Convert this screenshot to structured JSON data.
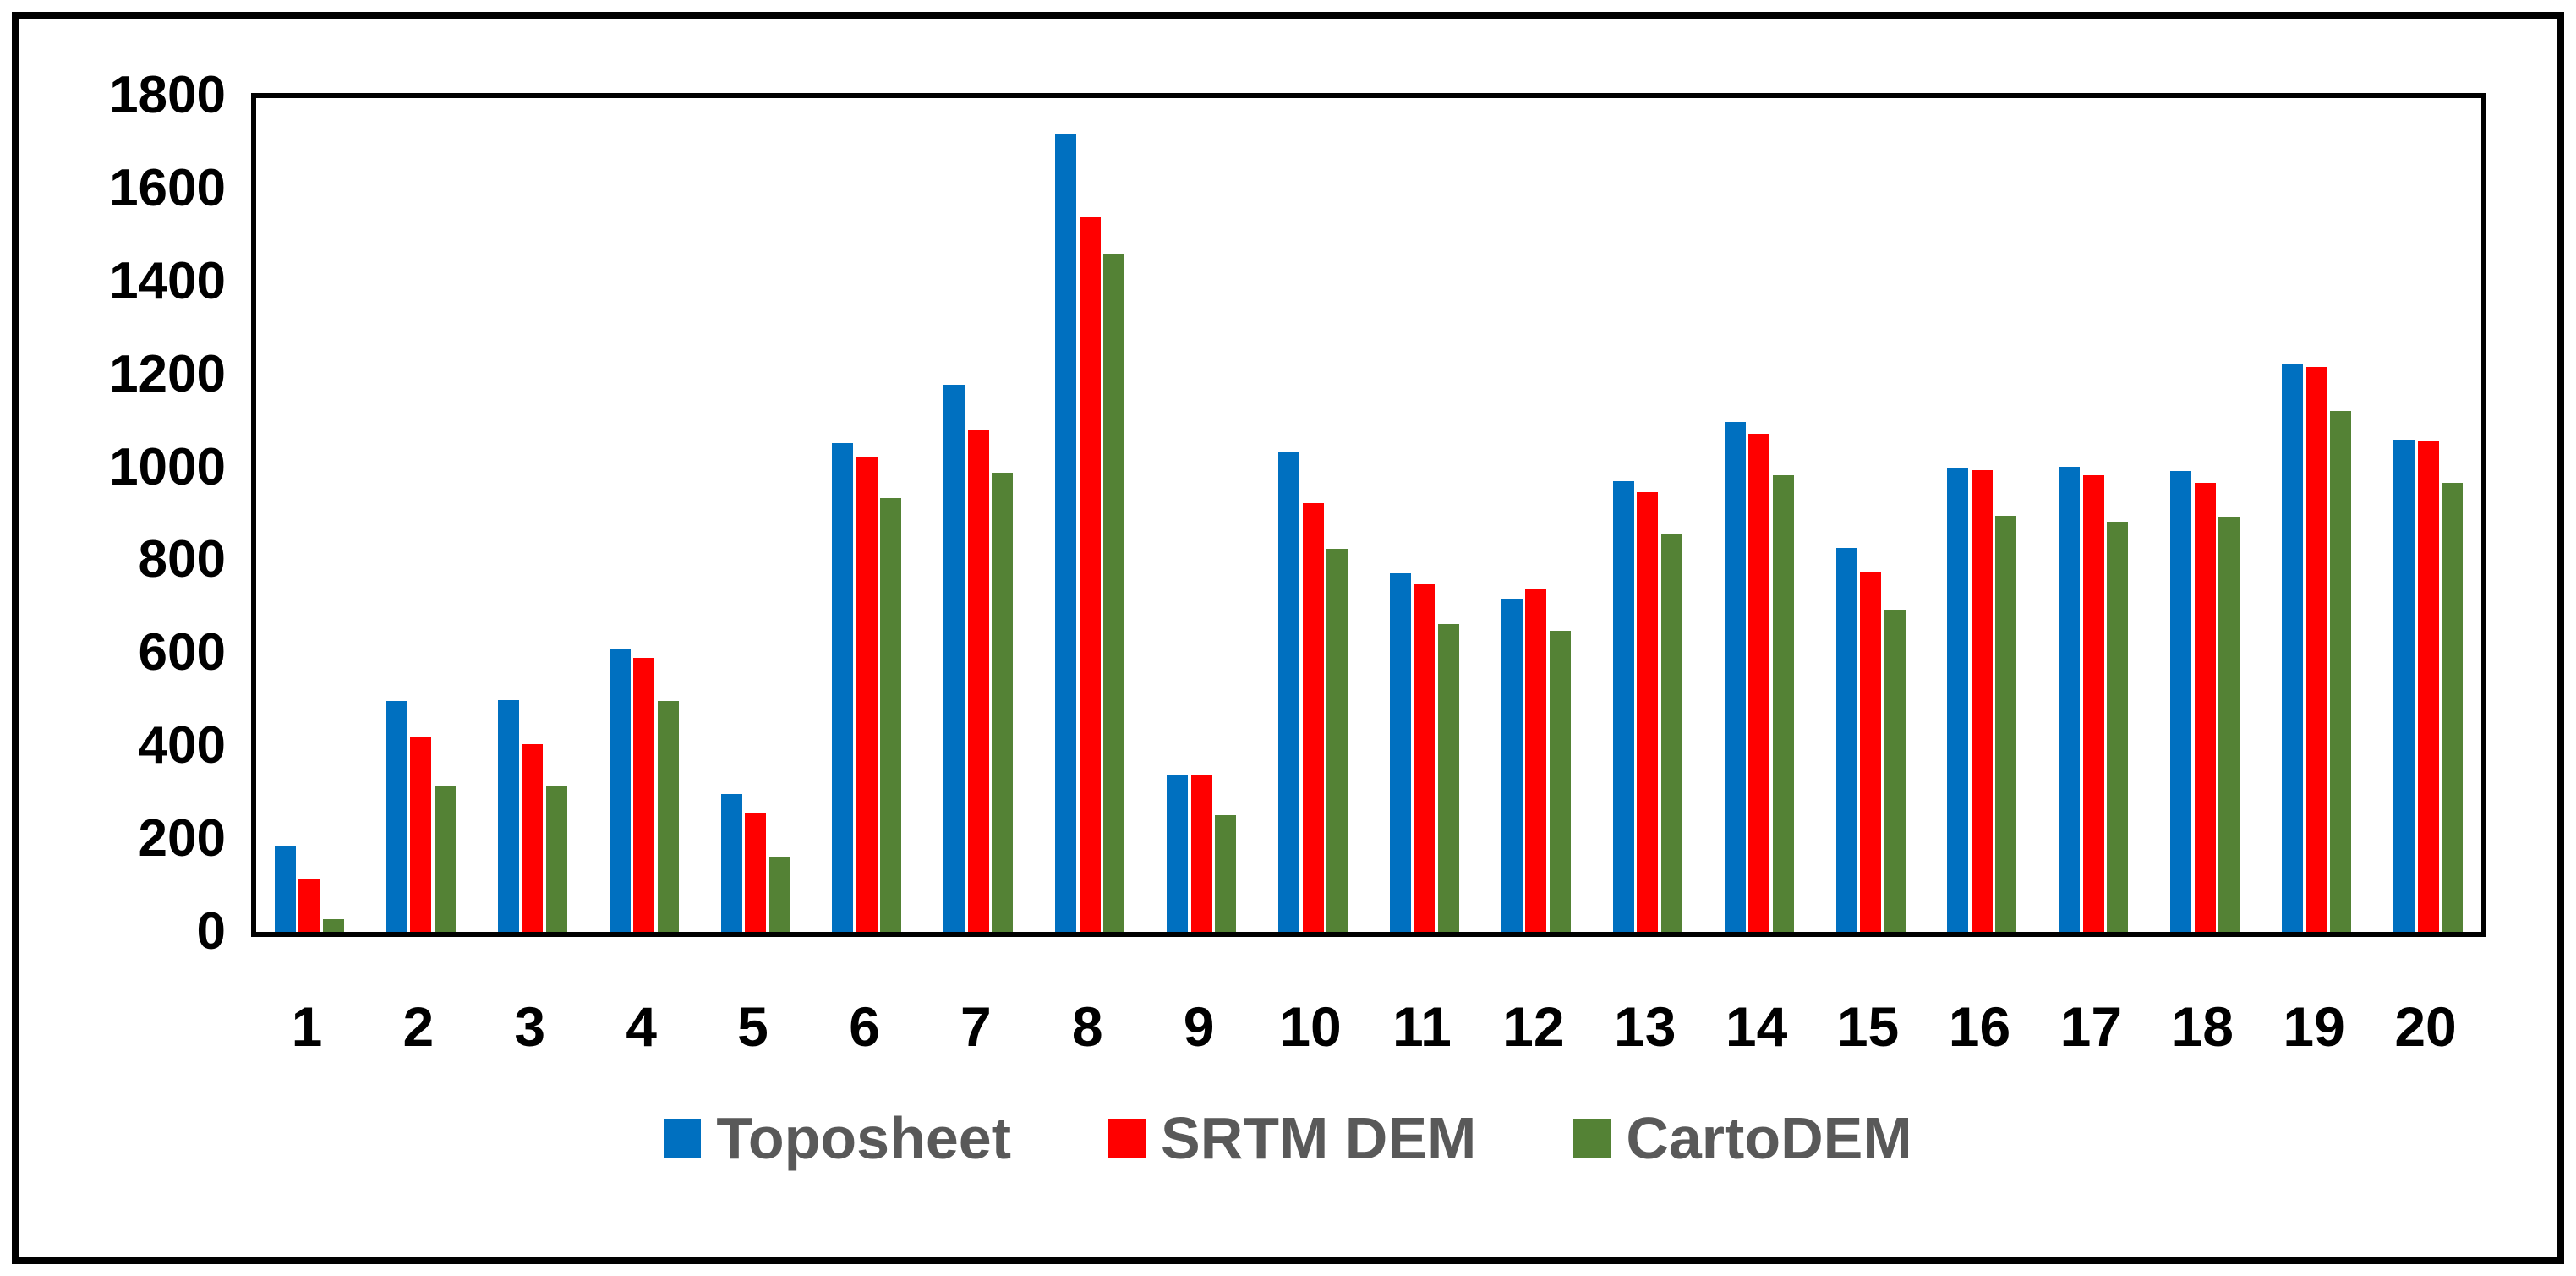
{
  "figure": {
    "background_color": "#ffffff",
    "border_color": "#000000"
  },
  "chart_data": {
    "type": "bar",
    "title": "",
    "xlabel": "",
    "ylabel": "",
    "categories": [
      "1",
      "2",
      "3",
      "4",
      "5",
      "6",
      "7",
      "8",
      "9",
      "10",
      "11",
      "12",
      "13",
      "14",
      "15",
      "16",
      "17",
      "18",
      "19",
      "20"
    ],
    "series": [
      {
        "name": "Toposheet",
        "color": "#0070C0",
        "values": [
          186,
          497,
          499,
          607,
          297,
          1052,
          1178,
          1716,
          337,
          1032,
          772,
          717,
          970,
          1097,
          826,
          997,
          1001,
          992,
          1223,
          1059
        ]
      },
      {
        "name": "SRTM DEM",
        "color": "#FF0000",
        "values": [
          113,
          420,
          404,
          589,
          255,
          1023,
          1081,
          1538,
          339,
          923,
          748,
          739,
          946,
          1072,
          774,
          994,
          982,
          966,
          1216,
          1057
        ]
      },
      {
        "name": "CartoDEM",
        "color": "#548235",
        "values": [
          28,
          315,
          315,
          496,
          161,
          934,
          988,
          1460,
          251,
          824,
          663,
          648,
          855,
          983,
          693,
          896,
          883,
          894,
          1121,
          966
        ]
      }
    ],
    "ylim": [
      0,
      1800
    ],
    "yticks": [
      0,
      200,
      400,
      600,
      800,
      1000,
      1200,
      1400,
      1600,
      1800
    ],
    "grid": false,
    "plot_area_border": true,
    "legend_position": "bottom",
    "legend_text_color": "#595959",
    "axis_text_color": "#000000",
    "axis_line_color": "#000000"
  }
}
